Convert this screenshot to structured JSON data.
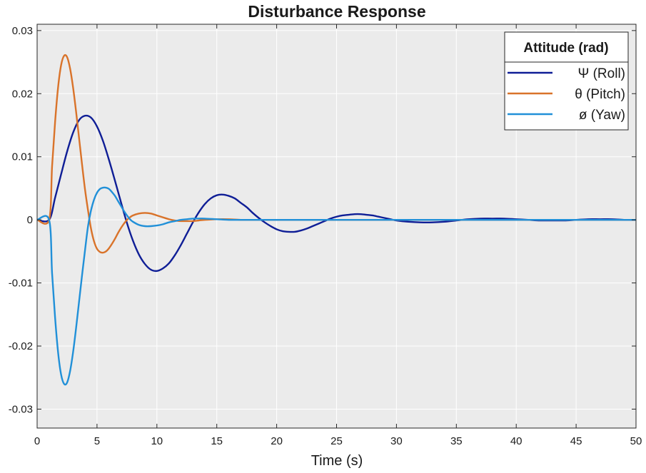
{
  "chart_data": {
    "type": "line",
    "title": "Disturbance Response",
    "xlabel": "Time (s)",
    "ylabel": "",
    "xlim": [
      0,
      50
    ],
    "ylim": [
      -0.033,
      0.031
    ],
    "xticks": [
      0,
      5,
      10,
      15,
      20,
      25,
      30,
      35,
      40,
      45,
      50
    ],
    "xtick_labels": [
      "0",
      "5",
      "10",
      "15",
      "20",
      "25",
      "30",
      "35",
      "40",
      "45",
      "50"
    ],
    "yticks": [
      -0.03,
      -0.02,
      -0.01,
      0,
      0.01,
      0.02,
      0.03
    ],
    "ytick_labels": [
      "-0.03",
      "-0.02",
      "-0.01",
      "0",
      "0.01",
      "0.02",
      "0.03"
    ],
    "grid": true,
    "background": "#ebebeb",
    "legend": {
      "title": "Attitude (rad)",
      "placement": "top-right"
    },
    "series": [
      {
        "name": "Ψ (Roll)",
        "color": "#0f1e96",
        "x": [
          0,
          1,
          1.5,
          2,
          2.5,
          3,
          3.5,
          4,
          4.5,
          5,
          5.5,
          6,
          6.5,
          7,
          7.5,
          8,
          8.5,
          9,
          9.5,
          10,
          10.5,
          11,
          11.5,
          12,
          12.5,
          13,
          13.5,
          14,
          14.5,
          15,
          15.5,
          16,
          16.5,
          17,
          17.5,
          18,
          18.5,
          19,
          19.5,
          20,
          20.5,
          21,
          21.5,
          22,
          22.5,
          23,
          23.5,
          24,
          24.5,
          25,
          25.5,
          26,
          26.5,
          27,
          27.5,
          28,
          28.5,
          29,
          29.5,
          30,
          31,
          32,
          33,
          34,
          35,
          36,
          37,
          38,
          39,
          40,
          41,
          42,
          43,
          44,
          45,
          46,
          47,
          48,
          49,
          50
        ],
        "y": [
          0,
          0,
          0.0035,
          0.0072,
          0.0108,
          0.0138,
          0.0158,
          0.0165,
          0.0162,
          0.0148,
          0.0125,
          0.0095,
          0.0062,
          0.0028,
          -0.0005,
          -0.0033,
          -0.0055,
          -0.007,
          -0.0079,
          -0.0081,
          -0.0077,
          -0.0069,
          -0.0056,
          -0.004,
          -0.0022,
          -0.0004,
          0.0012,
          0.0025,
          0.0034,
          0.0039,
          0.004,
          0.0038,
          0.0034,
          0.0027,
          0.002,
          0.0011,
          0.0003,
          -0.0004,
          -0.001,
          -0.0015,
          -0.0018,
          -0.0019,
          -0.0019,
          -0.0017,
          -0.0014,
          -0.001,
          -0.0006,
          -0.0002,
          0.0002,
          0.0005,
          0.0007,
          0.0008,
          0.0009,
          0.0009,
          0.0008,
          0.0007,
          0.0005,
          0.0003,
          0.0001,
          -0.0001,
          -0.0003,
          -0.0004,
          -0.0004,
          -0.0003,
          -0.0001,
          0.0001,
          0.0002,
          0.0002,
          0.0002,
          0.0001,
          0,
          -0.0001,
          -0.0001,
          -0.0001,
          0,
          0.0001,
          0.0001,
          0.0001,
          0,
          0
        ]
      },
      {
        "name": "θ (Pitch)",
        "color": "#d9732a",
        "x": [
          0,
          1,
          1.25,
          1.5,
          1.75,
          2,
          2.25,
          2.5,
          2.75,
          3,
          3.25,
          3.5,
          3.75,
          4,
          4.25,
          4.5,
          4.75,
          5,
          5.25,
          5.5,
          5.75,
          6,
          6.25,
          6.5,
          6.75,
          7,
          7.25,
          7.5,
          7.75,
          8,
          8.5,
          9,
          9.5,
          10,
          10.5,
          11,
          11.5,
          12,
          12.5,
          13,
          13.5,
          14,
          15,
          16,
          17,
          18,
          20,
          25,
          30,
          35,
          40,
          45,
          50
        ],
        "y": [
          0,
          0,
          0.0085,
          0.0155,
          0.021,
          0.0245,
          0.026,
          0.0258,
          0.024,
          0.021,
          0.0172,
          0.013,
          0.0088,
          0.0048,
          0.0015,
          -0.0014,
          -0.0034,
          -0.0046,
          -0.0051,
          -0.0052,
          -0.005,
          -0.0045,
          -0.0038,
          -0.003,
          -0.0021,
          -0.0013,
          -0.0006,
          0.0,
          0.0004,
          0.0007,
          0.001,
          0.0011,
          0.001,
          0.0007,
          0.0004,
          0.0001,
          -0.0001,
          -0.0002,
          -0.0002,
          -0.0002,
          -0.0001,
          0,
          0.0001,
          0.0001,
          0,
          0,
          0,
          0,
          0,
          0,
          0,
          0,
          0
        ]
      },
      {
        "name": "ø (Yaw)",
        "color": "#2190d8",
        "x": [
          0,
          1,
          1.25,
          1.5,
          1.75,
          2,
          2.25,
          2.5,
          2.75,
          3,
          3.25,
          3.5,
          3.75,
          4,
          4.25,
          4.5,
          4.75,
          5,
          5.25,
          5.5,
          5.75,
          6,
          6.25,
          6.5,
          6.75,
          7,
          7.25,
          7.5,
          7.75,
          8,
          8.5,
          9,
          9.5,
          10,
          10.5,
          11,
          11.5,
          12,
          12.5,
          13,
          13.5,
          14,
          15,
          16,
          17,
          18,
          20,
          25,
          30,
          35,
          40,
          45,
          50
        ],
        "y": [
          0,
          0,
          -0.0085,
          -0.0155,
          -0.021,
          -0.0245,
          -0.026,
          -0.0258,
          -0.024,
          -0.021,
          -0.0172,
          -0.013,
          -0.0088,
          -0.0048,
          -0.001,
          0.0015,
          0.0032,
          0.0043,
          0.0049,
          0.0051,
          0.0051,
          0.0049,
          0.0044,
          0.0038,
          0.003,
          0.0022,
          0.0014,
          0.0007,
          0.0001,
          -0.0003,
          -0.0008,
          -0.001,
          -0.001,
          -0.0009,
          -0.0007,
          -0.0004,
          -0.0002,
          0.0,
          0.0001,
          0.0002,
          0.0002,
          0.0002,
          0.0001,
          0,
          0,
          0,
          0,
          0,
          0,
          0,
          0,
          0,
          0
        ]
      }
    ]
  }
}
